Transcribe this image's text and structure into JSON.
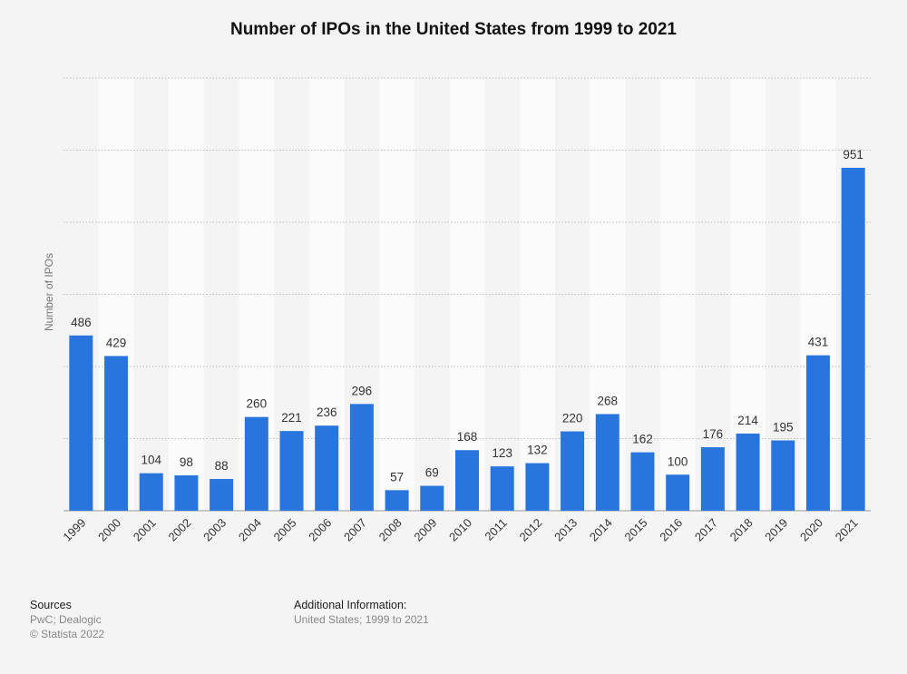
{
  "chart_data": {
    "type": "bar",
    "title": "Number of IPOs in the United States from 1999 to 2021",
    "ylabel": "Number of IPOs",
    "xlabel": "",
    "categories": [
      "1999",
      "2000",
      "2001",
      "2002",
      "2003",
      "2004",
      "2005",
      "2006",
      "2007",
      "2008",
      "2009",
      "2010",
      "2011",
      "2012",
      "2013",
      "2014",
      "2015",
      "2016",
      "2017",
      "2018",
      "2019",
      "2020",
      "2021"
    ],
    "values": [
      486,
      429,
      104,
      98,
      88,
      260,
      221,
      236,
      296,
      57,
      69,
      168,
      123,
      132,
      220,
      268,
      162,
      100,
      176,
      214,
      195,
      431,
      951
    ],
    "ylim": [
      0,
      1200
    ],
    "grid": true,
    "bar_color": "#2876dd"
  },
  "footer": {
    "sources_title": "Sources",
    "sources_lines": [
      "PwC; Dealogic",
      "© Statista 2022"
    ],
    "info_title": "Additional Information:",
    "info_lines": [
      "United States; 1999 to 2021"
    ]
  }
}
